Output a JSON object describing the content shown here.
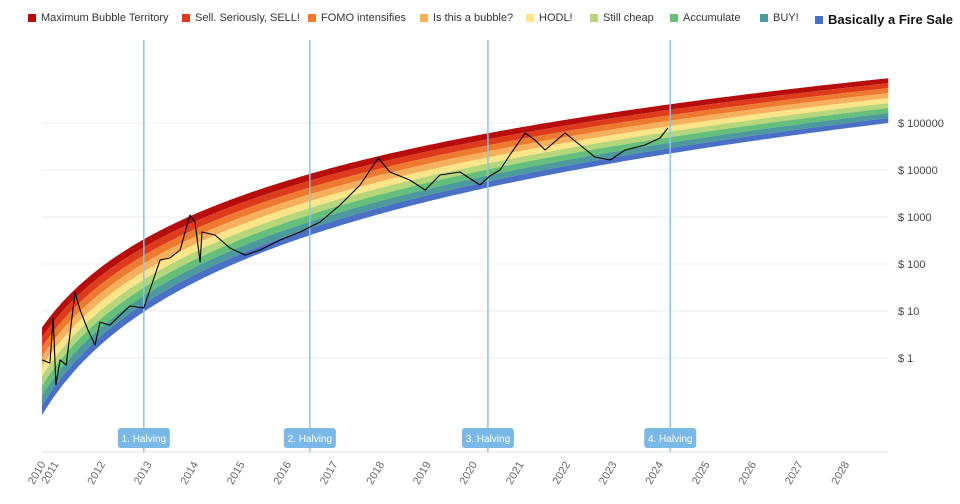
{
  "chart_data": {
    "type": "line",
    "title": "",
    "xlabel": "",
    "ylabel": "",
    "y_scale": "log",
    "ylim": [
      0.01,
      5000000
    ],
    "xlim": [
      2010.72,
      2028.93
    ],
    "grid": true,
    "legend_placement": "top",
    "x_tick_labels": [
      "2010",
      "2011",
      "2012",
      "2013",
      "2014",
      "2015",
      "2016",
      "2017",
      "2018",
      "2019",
      "2020",
      "2021",
      "2022",
      "2023",
      "2024",
      "2025",
      "2026",
      "2027",
      "2028"
    ],
    "y_ticks": [
      1,
      10,
      100,
      1000,
      10000,
      100000
    ],
    "y_tick_labels": [
      "$ 1",
      "$ 10",
      "$ 100",
      "$ 1000",
      "$ 10000",
      "$ 100000"
    ],
    "bands": [
      {
        "name": "Maximum Bubble Territory",
        "color": "#b80d0d"
      },
      {
        "name": "Sell. Seriously, SELL!",
        "color": "#dd3b1c"
      },
      {
        "name": "FOMO intensifies",
        "color": "#ee7a30"
      },
      {
        "name": "Is this a bubble?",
        "color": "#f6b05c"
      },
      {
        "name": "HODL!",
        "color": "#fbe589"
      },
      {
        "name": "Still cheap",
        "color": "#b5d67a"
      },
      {
        "name": "Accumulate",
        "color": "#63bf79"
      },
      {
        "name": "BUY!",
        "color": "#4d9a9c"
      },
      {
        "name": "Basically a Fire Sale",
        "color": "#4a70c6"
      }
    ],
    "halvings": [
      {
        "label": "1. Halving",
        "year": 2012.91
      },
      {
        "label": "2. Halving",
        "year": 2016.48
      },
      {
        "label": "3. Halving",
        "year": 2020.31
      },
      {
        "label": "4. Halving",
        "year": 2024.23
      }
    ],
    "price_series": {
      "color": "#000000",
      "year": [
        2010.72,
        2010.89,
        2010.96,
        2011.02,
        2011.11,
        2011.24,
        2011.43,
        2011.54,
        2011.71,
        2011.86,
        2011.97,
        2012.18,
        2012.4,
        2012.61,
        2012.91,
        2013.04,
        2013.26,
        2013.47,
        2013.69,
        2013.9,
        2014.01,
        2014.12,
        2014.16,
        2014.44,
        2014.76,
        2015.09,
        2015.41,
        2015.84,
        2016.27,
        2016.7,
        2017.13,
        2017.56,
        2017.95,
        2018.2,
        2018.63,
        2018.96,
        2019.28,
        2019.71,
        2020.14,
        2020.35,
        2020.57,
        2020.78,
        2021.11,
        2021.32,
        2021.54,
        2021.97,
        2022.29,
        2022.61,
        2022.94,
        2023.26,
        2023.69,
        2024.01,
        2024.18
      ],
      "price": [
        0.91,
        0.78,
        7.1,
        0.27,
        0.91,
        0.71,
        25,
        10.5,
        3.9,
        1.9,
        5.8,
        5.0,
        8.2,
        12.8,
        11.6,
        28,
        122,
        134,
        199,
        1100,
        783,
        110,
        480,
        414,
        219,
        155,
        199,
        324,
        480,
        783,
        1800,
        4800,
        18000,
        9060,
        6120,
        3750,
        7830,
        9060,
        4800,
        7450,
        10000,
        20800,
        61300,
        43500,
        26700,
        61300,
        34000,
        18900,
        16300,
        26700,
        34000,
        48000,
        78300
      ]
    },
    "halving_line_color": "#8ec3e6",
    "halving_label_bg": "#7ab8e8"
  }
}
